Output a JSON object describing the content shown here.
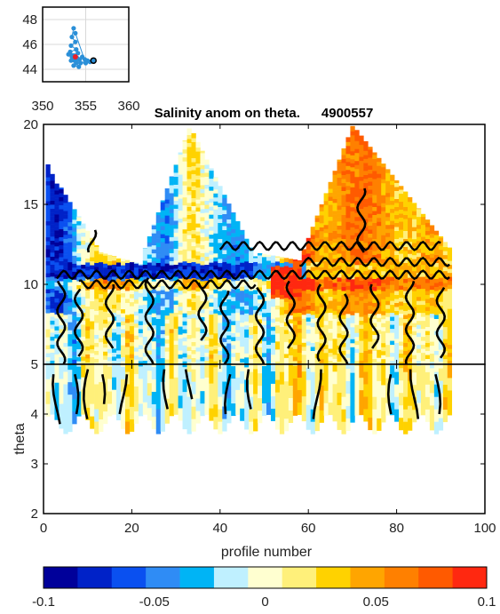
{
  "chart_data": [
    {
      "type": "scatter",
      "role": "location-inset",
      "xlim": [
        350,
        360
      ],
      "ylim": [
        43,
        49
      ],
      "x_ticks": [
        "350",
        "355",
        "360"
      ],
      "y_ticks": [
        "44",
        "46",
        "48"
      ],
      "grid": true,
      "track_points": [
        [
          353.6,
          47.3
        ],
        [
          353.4,
          46.6
        ],
        [
          353.8,
          46.2
        ],
        [
          353.3,
          45.9
        ],
        [
          353.9,
          45.6
        ],
        [
          353.2,
          45.4
        ],
        [
          353.5,
          45.1
        ],
        [
          354.0,
          44.9
        ],
        [
          353.7,
          44.7
        ],
        [
          353.3,
          44.7
        ],
        [
          354.3,
          44.8
        ],
        [
          354.6,
          45.0
        ],
        [
          354.9,
          44.8
        ],
        [
          355.2,
          44.7
        ],
        [
          355.5,
          44.6
        ],
        [
          355.9,
          44.7
        ],
        [
          353.9,
          44.5
        ],
        [
          353.6,
          44.3
        ],
        [
          354.2,
          44.2
        ],
        [
          353.4,
          45.0
        ],
        [
          354.1,
          45.3
        ],
        [
          353.0,
          45.2
        ],
        [
          354.4,
          44.5
        ],
        [
          355.0,
          44.5
        ],
        [
          353.8,
          46.9
        ]
      ],
      "start_marker": [
        355.9,
        44.7
      ],
      "last_marker": [
        353.8,
        45.0
      ],
      "colors": {
        "track": "#2a8fd8",
        "start": "#000000",
        "last": "#e8202a"
      }
    },
    {
      "type": "heatmap",
      "role": "contour-section",
      "title": "Salinity anom on theta.",
      "float_id": "4900557",
      "xlabel": "profile number",
      "ylabel": "theta",
      "xlim": [
        0,
        100
      ],
      "upper_panel": {
        "ylim": [
          5,
          20
        ],
        "y_ticks": [
          "5",
          "10",
          "15",
          "20"
        ]
      },
      "lower_panel": {
        "ylim": [
          2,
          5
        ],
        "y_ticks": [
          "2",
          "3",
          "4"
        ]
      },
      "x_ticks": [
        "0",
        "20",
        "40",
        "60",
        "80",
        "100"
      ],
      "profile_range": [
        1,
        92
      ],
      "colorbar": {
        "min": -0.1,
        "max": 0.1,
        "tick_labels": [
          "-0.1",
          "-0.05",
          "0",
          "0.05",
          "0.1"
        ],
        "colors": [
          "#00009a",
          "#0022c8",
          "#0a50f0",
          "#2f8cf5",
          "#00b4f5",
          "#bff0ff",
          "#ffffd0",
          "#fff07a",
          "#ffd200",
          "#ffa500",
          "#ff8000",
          "#ff5a00",
          "#ff2810"
        ]
      }
    }
  ]
}
